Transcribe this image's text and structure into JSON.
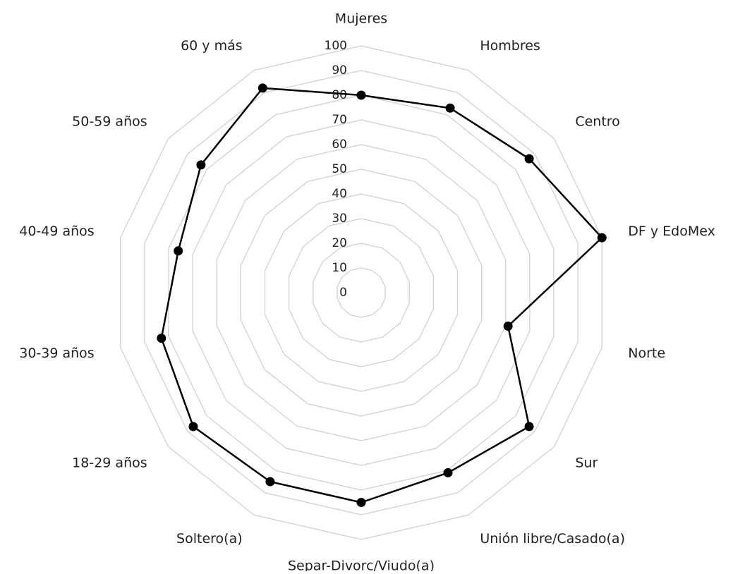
{
  "chart_data": {
    "type": "radar",
    "categories": [
      "Mujeres",
      "Hombres",
      "Centro",
      "DF y EdoMex",
      "Norte",
      "Sur",
      "Unión libre/Casado(a)",
      "Separ-Divorc/Viudo(a)",
      "Soltero(a)",
      "18-29 años",
      "30-39 años",
      "40-49 años",
      "50-59 años",
      "60 y más"
    ],
    "values": [
      80,
      83,
      87,
      100,
      61,
      87,
      81,
      85,
      85,
      87,
      83,
      76,
      83,
      92
    ],
    "color": "#000000",
    "rlim": [
      0,
      100
    ],
    "rticks": [
      0,
      10,
      20,
      30,
      40,
      50,
      60,
      70,
      80,
      90,
      100
    ],
    "grid": true
  }
}
